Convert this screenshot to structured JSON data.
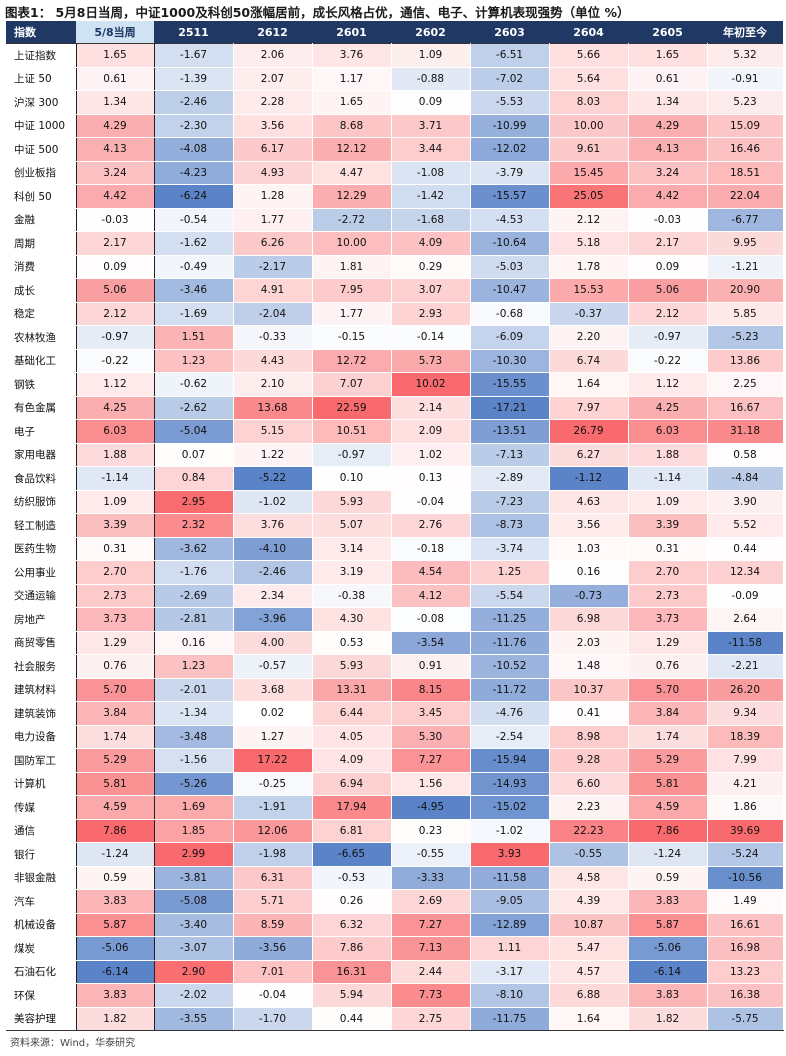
{
  "title": "图表1：  5月8日当周，中证1000及科创50涨幅居前，成长风格占优，通信、电子、计算机表现强势（单位 %）",
  "source": "资料来源：Wind，华泰研究",
  "colors": {
    "header_bg": "#1f3864",
    "current_header_bg": "#cfe3f5",
    "positive": "#f86a6d",
    "negative": "#5b84c8",
    "neutral": "#ffffff"
  },
  "chart_data": {
    "type": "heatmap",
    "row_header": "指数",
    "columns": [
      "5/8当周",
      "2511",
      "2612",
      "2601",
      "2602",
      "2603",
      "2604",
      "2605",
      "年初至今"
    ],
    "groups": [
      {
        "rows": [
          {
            "name": "上证指数",
            "values": [
              1.65,
              -1.67,
              2.06,
              3.76,
              1.09,
              -6.51,
              5.66,
              1.65,
              5.32
            ]
          },
          {
            "name": "上证 50",
            "values": [
              0.61,
              -1.39,
              2.07,
              1.17,
              -0.88,
              -7.02,
              5.64,
              0.61,
              -0.91
            ]
          },
          {
            "name": "沪深 300",
            "values": [
              1.34,
              -2.46,
              2.28,
              1.65,
              0.09,
              -5.53,
              8.03,
              1.34,
              5.23
            ]
          },
          {
            "name": "中证 1000",
            "values": [
              4.29,
              -2.3,
              3.56,
              8.68,
              3.71,
              -10.99,
              10.0,
              4.29,
              15.09
            ]
          },
          {
            "name": "中证 500",
            "values": [
              4.13,
              -4.08,
              6.17,
              12.12,
              3.44,
              -12.02,
              9.61,
              4.13,
              16.46
            ]
          },
          {
            "name": "创业板指",
            "values": [
              3.24,
              -4.23,
              4.93,
              4.47,
              -1.08,
              -3.79,
              15.45,
              3.24,
              18.51
            ]
          },
          {
            "name": "科创 50",
            "values": [
              4.42,
              -6.24,
              1.28,
              12.29,
              -1.42,
              -15.57,
              25.05,
              4.42,
              22.04
            ]
          }
        ]
      },
      {
        "rows": [
          {
            "name": "金融",
            "values": [
              -0.03,
              -0.54,
              1.77,
              -2.72,
              -1.68,
              -4.53,
              2.12,
              -0.03,
              -6.77
            ]
          },
          {
            "name": "周期",
            "values": [
              2.17,
              -1.62,
              6.26,
              10.0,
              4.09,
              -10.64,
              5.18,
              2.17,
              9.95
            ]
          },
          {
            "name": "消费",
            "values": [
              0.09,
              -0.49,
              -2.17,
              1.81,
              0.29,
              -5.03,
              1.78,
              0.09,
              -1.21
            ]
          },
          {
            "name": "成长",
            "values": [
              5.06,
              -3.46,
              4.91,
              7.95,
              3.07,
              -10.47,
              15.53,
              5.06,
              20.9
            ]
          },
          {
            "name": "稳定",
            "values": [
              2.12,
              -1.69,
              -2.04,
              1.77,
              2.93,
              -0.68,
              -0.37,
              2.12,
              5.85
            ]
          }
        ]
      },
      {
        "rows": [
          {
            "name": "农林牧渔",
            "values": [
              -0.97,
              1.51,
              -0.33,
              -0.15,
              -0.14,
              -6.09,
              2.2,
              -0.97,
              -5.23
            ]
          },
          {
            "name": "基础化工",
            "values": [
              -0.22,
              1.23,
              4.43,
              12.72,
              5.73,
              -10.3,
              6.74,
              -0.22,
              13.86
            ]
          },
          {
            "name": "钢铁",
            "values": [
              1.12,
              -0.62,
              2.1,
              7.07,
              10.02,
              -15.55,
              1.64,
              1.12,
              2.25
            ]
          },
          {
            "name": "有色金属",
            "values": [
              4.25,
              -2.62,
              13.68,
              22.59,
              2.14,
              -17.21,
              7.97,
              4.25,
              16.67
            ]
          },
          {
            "name": "电子",
            "values": [
              6.03,
              -5.04,
              5.15,
              10.51,
              2.09,
              -13.51,
              26.79,
              6.03,
              31.18
            ]
          },
          {
            "name": "家用电器",
            "values": [
              1.88,
              0.07,
              1.22,
              -0.97,
              1.02,
              -7.13,
              6.27,
              1.88,
              0.58
            ]
          },
          {
            "name": "食品饮料",
            "values": [
              -1.14,
              0.84,
              -5.22,
              0.1,
              0.13,
              -2.89,
              -1.12,
              -1.14,
              -4.84
            ]
          },
          {
            "name": "纺织服饰",
            "values": [
              1.09,
              2.95,
              -1.02,
              5.93,
              -0.04,
              -7.23,
              4.63,
              1.09,
              3.9
            ]
          },
          {
            "name": "轻工制造",
            "values": [
              3.39,
              2.32,
              3.76,
              5.07,
              2.76,
              -8.73,
              3.56,
              3.39,
              5.52
            ]
          },
          {
            "name": "医药生物",
            "values": [
              0.31,
              -3.62,
              -4.1,
              3.14,
              -0.18,
              -3.74,
              1.03,
              0.31,
              0.44
            ]
          },
          {
            "name": "公用事业",
            "values": [
              2.7,
              -1.76,
              -2.46,
              3.19,
              4.54,
              1.25,
              0.16,
              2.7,
              12.34
            ]
          },
          {
            "name": "交通运输",
            "values": [
              2.73,
              -2.69,
              2.34,
              -0.38,
              4.12,
              -5.54,
              -0.73,
              2.73,
              -0.09
            ]
          },
          {
            "name": "房地产",
            "values": [
              3.73,
              -2.81,
              -3.96,
              4.3,
              -0.08,
              -11.25,
              6.98,
              3.73,
              2.64
            ]
          },
          {
            "name": "商贸零售",
            "values": [
              1.29,
              0.16,
              4.0,
              0.53,
              -3.54,
              -11.76,
              2.03,
              1.29,
              -11.58
            ]
          },
          {
            "name": "社会服务",
            "values": [
              0.76,
              1.23,
              -0.57,
              5.93,
              0.91,
              -10.52,
              1.48,
              0.76,
              -2.21
            ]
          },
          {
            "name": "建筑材料",
            "values": [
              5.7,
              -2.01,
              3.68,
              13.31,
              8.15,
              -11.72,
              10.37,
              5.7,
              26.2
            ]
          },
          {
            "name": "建筑装饰",
            "values": [
              3.84,
              -1.34,
              0.02,
              6.44,
              3.45,
              -4.76,
              0.41,
              3.84,
              9.34
            ]
          },
          {
            "name": "电力设备",
            "values": [
              1.74,
              -3.48,
              1.27,
              4.05,
              5.3,
              -2.54,
              8.98,
              1.74,
              18.39
            ]
          },
          {
            "name": "国防军工",
            "values": [
              5.29,
              -1.56,
              17.22,
              4.09,
              7.27,
              -15.94,
              9.28,
              5.29,
              7.99
            ]
          },
          {
            "name": "计算机",
            "values": [
              5.81,
              -5.26,
              -0.25,
              6.94,
              1.56,
              -14.93,
              6.6,
              5.81,
              4.21
            ]
          },
          {
            "name": "传媒",
            "values": [
              4.59,
              1.69,
              -1.91,
              17.94,
              -4.95,
              -15.02,
              2.23,
              4.59,
              1.86
            ]
          },
          {
            "name": "通信",
            "values": [
              7.86,
              1.85,
              12.06,
              6.81,
              0.23,
              -1.02,
              22.23,
              7.86,
              39.69
            ]
          },
          {
            "name": "银行",
            "values": [
              -1.24,
              2.99,
              -1.98,
              -6.65,
              -0.55,
              3.93,
              -0.55,
              -1.24,
              -5.24
            ]
          },
          {
            "name": "非银金融",
            "values": [
              0.59,
              -3.81,
              6.31,
              -0.53,
              -3.33,
              -11.58,
              4.58,
              0.59,
              -10.56
            ]
          },
          {
            "name": "汽车",
            "values": [
              3.83,
              -5.08,
              5.71,
              0.26,
              2.69,
              -9.05,
              4.39,
              3.83,
              1.49
            ]
          },
          {
            "name": "机械设备",
            "values": [
              5.87,
              -3.4,
              8.59,
              6.32,
              7.27,
              -12.89,
              10.87,
              5.87,
              16.61
            ]
          },
          {
            "name": "煤炭",
            "values": [
              -5.06,
              -3.07,
              -3.56,
              7.86,
              7.13,
              1.11,
              5.47,
              -5.06,
              16.98
            ]
          },
          {
            "name": "石油石化",
            "values": [
              -6.14,
              2.9,
              7.01,
              16.31,
              2.44,
              -3.17,
              4.57,
              -6.14,
              13.23
            ]
          },
          {
            "name": "环保",
            "values": [
              3.83,
              -2.02,
              -0.04,
              5.94,
              7.73,
              -8.1,
              6.88,
              3.83,
              16.38
            ]
          },
          {
            "name": "美容护理",
            "values": [
              1.82,
              -3.55,
              -1.7,
              0.44,
              2.75,
              -11.75,
              1.64,
              1.82,
              -5.75
            ]
          }
        ]
      }
    ]
  }
}
